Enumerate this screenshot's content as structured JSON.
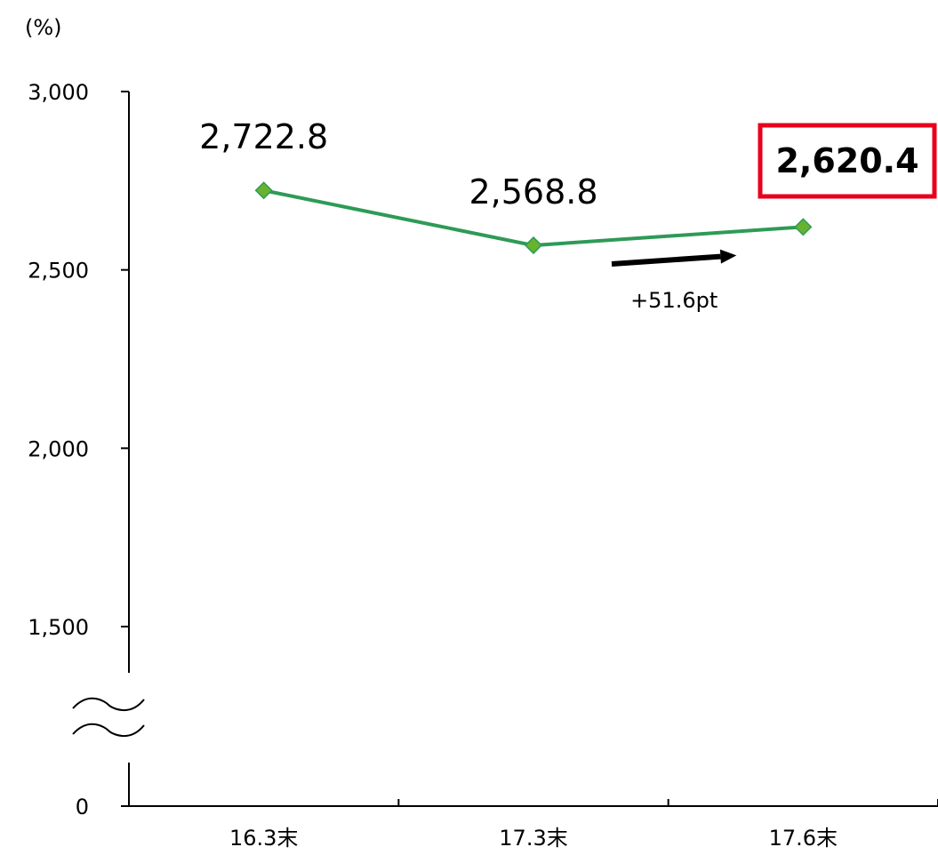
{
  "chart_data": {
    "type": "line",
    "title": "",
    "xlabel": "",
    "ylabel": "",
    "y_unit": "(%)",
    "categories": [
      "16.3末",
      "17.3末",
      "17.6末"
    ],
    "series": [
      {
        "values": [
          2722.8,
          2568.8,
          2620.4
        ],
        "color": "#2e9a57",
        "marker_color": "#66b32e"
      }
    ],
    "data_labels": [
      "2,722.8",
      "2,568.8",
      "2,620.4"
    ],
    "highlight_index": 2,
    "highlight_color": "#e8001c",
    "y_ticks": [
      {
        "value": 0,
        "label": "0"
      },
      {
        "value": 1500,
        "label": "1,500"
      },
      {
        "value": 2000,
        "label": "2,000"
      },
      {
        "value": 2500,
        "label": "2,500"
      },
      {
        "value": 3000,
        "label": "3,000"
      }
    ],
    "ylim": [
      1500,
      3000
    ],
    "axis_break": true,
    "grid": false,
    "change_annotation": {
      "label": "+51.6pt",
      "color": "#000000"
    }
  }
}
